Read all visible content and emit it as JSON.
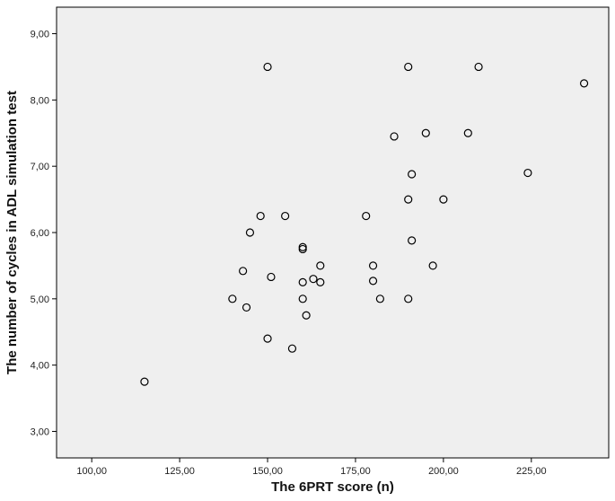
{
  "chart_data": {
    "type": "scatter",
    "title": "",
    "xlabel": "The 6PRT score (n)",
    "ylabel": "The number of cycles in ADL simulation test",
    "xlim": [
      90,
      247
    ],
    "ylim": [
      2.6,
      9.4
    ],
    "x_ticks": [
      100,
      125,
      150,
      175,
      200,
      225
    ],
    "x_tick_labels": [
      "100,00",
      "125,00",
      "150,00",
      "175,00",
      "200,00",
      "225,00"
    ],
    "y_ticks": [
      3,
      4,
      5,
      6,
      7,
      8,
      9
    ],
    "y_tick_labels": [
      "3,00",
      "4,00",
      "5,00",
      "6,00",
      "7,00",
      "8,00",
      "9,00"
    ],
    "grid": false,
    "plot_background": "#efefef",
    "marker": "open-circle",
    "marker_color": "#000000",
    "points": [
      {
        "x": 115,
        "y": 3.75
      },
      {
        "x": 140,
        "y": 5.0
      },
      {
        "x": 143,
        "y": 5.42
      },
      {
        "x": 144,
        "y": 4.87
      },
      {
        "x": 145,
        "y": 6.0
      },
      {
        "x": 148,
        "y": 6.25
      },
      {
        "x": 150,
        "y": 8.5
      },
      {
        "x": 150,
        "y": 4.4
      },
      {
        "x": 151,
        "y": 5.33
      },
      {
        "x": 155,
        "y": 6.25
      },
      {
        "x": 157,
        "y": 4.25
      },
      {
        "x": 160,
        "y": 5.78
      },
      {
        "x": 160,
        "y": 5.75
      },
      {
        "x": 160,
        "y": 5.25
      },
      {
        "x": 160,
        "y": 5.0
      },
      {
        "x": 161,
        "y": 4.75
      },
      {
        "x": 163,
        "y": 5.3
      },
      {
        "x": 165,
        "y": 5.5
      },
      {
        "x": 165,
        "y": 5.25
      },
      {
        "x": 178,
        "y": 6.25
      },
      {
        "x": 180,
        "y": 5.5
      },
      {
        "x": 180,
        "y": 5.27
      },
      {
        "x": 182,
        "y": 5.0
      },
      {
        "x": 186,
        "y": 7.45
      },
      {
        "x": 190,
        "y": 8.5
      },
      {
        "x": 190,
        "y": 6.5
      },
      {
        "x": 190,
        "y": 5.0
      },
      {
        "x": 191,
        "y": 6.88
      },
      {
        "x": 191,
        "y": 5.88
      },
      {
        "x": 195,
        "y": 7.5
      },
      {
        "x": 197,
        "y": 5.5
      },
      {
        "x": 200,
        "y": 6.5
      },
      {
        "x": 207,
        "y": 7.5
      },
      {
        "x": 210,
        "y": 8.5
      },
      {
        "x": 224,
        "y": 6.9
      },
      {
        "x": 240,
        "y": 8.25
      }
    ]
  }
}
